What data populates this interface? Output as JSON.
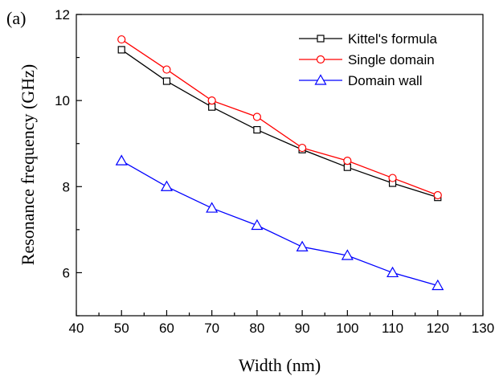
{
  "panel_label": "(a)",
  "chart_data": {
    "type": "line",
    "title": "",
    "xlabel": "Width (nm)",
    "ylabel": "Resonance frequency (GHz)",
    "xlim": [
      40,
      130
    ],
    "ylim": [
      5,
      12
    ],
    "xticks": [
      40,
      50,
      60,
      70,
      80,
      90,
      100,
      110,
      120,
      130
    ],
    "yticks": [
      6,
      8,
      10,
      12
    ],
    "grid": false,
    "legend_position": "top-right",
    "x": [
      50,
      60,
      70,
      80,
      90,
      100,
      110,
      120
    ],
    "series": [
      {
        "name": "Kittel's formula",
        "color": "#000000",
        "marker": "square",
        "values": [
          11.18,
          10.45,
          9.85,
          9.32,
          8.86,
          8.45,
          8.08,
          7.75
        ]
      },
      {
        "name": "Single domain",
        "color": "#ff0000",
        "marker": "circle",
        "values": [
          11.42,
          10.72,
          10.0,
          9.62,
          8.9,
          8.6,
          8.2,
          7.8
        ]
      },
      {
        "name": "Domain wall",
        "color": "#0000ff",
        "marker": "triangle",
        "values": [
          8.6,
          8.0,
          7.5,
          7.1,
          6.6,
          6.4,
          6.0,
          5.7
        ]
      }
    ]
  }
}
